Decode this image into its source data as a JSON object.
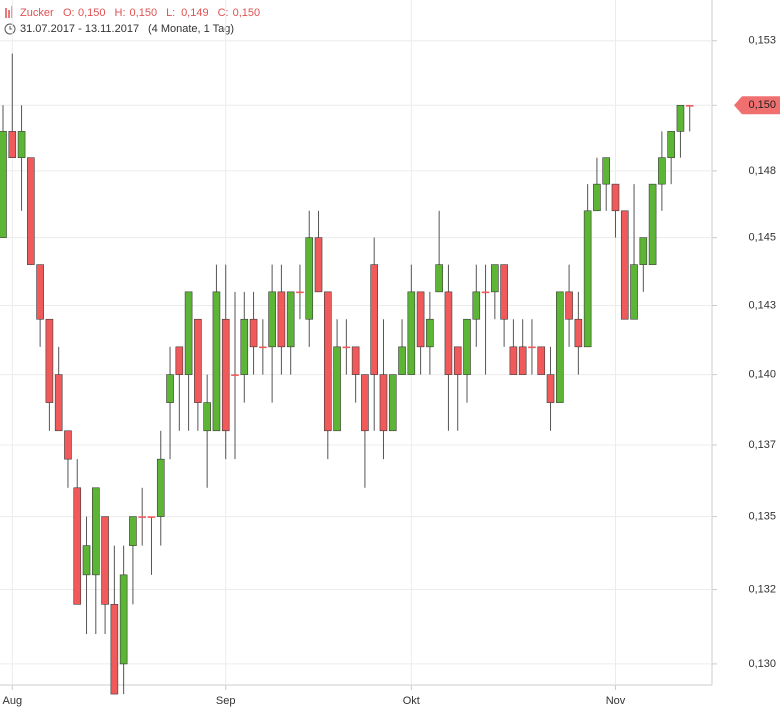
{
  "chart_data": {
    "type": "candlestick",
    "title": "Zucker",
    "ohlc_header": [
      {
        "label": "O:",
        "value": "0,150"
      },
      {
        "label": "H:",
        "value": "0,150"
      },
      {
        "label": "L:",
        "value": "0,149"
      },
      {
        "label": "C:",
        "value": "0,150"
      }
    ],
    "date_range": "31.07.2017 - 13.11.2017",
    "duration": "(4 Monate, 1 Tag)",
    "categories": [
      null,
      "Aug",
      null,
      null,
      null,
      null,
      null,
      null,
      null,
      null,
      null,
      null,
      null,
      null,
      null,
      null,
      null,
      null,
      null,
      null,
      null,
      null,
      null,
      null,
      "Sep",
      null,
      null,
      null,
      null,
      null,
      null,
      null,
      null,
      null,
      null,
      null,
      null,
      null,
      null,
      null,
      null,
      null,
      null,
      null,
      "Okt",
      null,
      null,
      null,
      null,
      null,
      null,
      null,
      null,
      null,
      null,
      null,
      null,
      null,
      null,
      null,
      null,
      null,
      null,
      null,
      null,
      null,
      "Nov",
      null,
      null,
      null,
      null,
      null,
      null,
      null,
      null
    ],
    "open": [
      0.145,
      0.149,
      0.148,
      0.148,
      0.144,
      0.142,
      0.14,
      0.138,
      0.136,
      0.133,
      0.133,
      0.135,
      0.132,
      0.13,
      0.134,
      0.135,
      0.135,
      0.135,
      0.139,
      0.141,
      0.14,
      0.142,
      0.138,
      0.138,
      0.142,
      0.14,
      0.14,
      0.142,
      0.141,
      0.141,
      0.143,
      0.141,
      0.143,
      0.142,
      0.145,
      0.143,
      0.138,
      0.141,
      0.141,
      0.14,
      0.144,
      0.14,
      0.138,
      0.14,
      0.14,
      0.143,
      0.141,
      0.143,
      0.143,
      0.141,
      0.14,
      0.142,
      0.143,
      0.143,
      0.144,
      0.141,
      0.141,
      0.141,
      0.141,
      0.14,
      0.139,
      0.143,
      0.142,
      0.141,
      0.146,
      0.147,
      0.147,
      0.146,
      0.142,
      0.144,
      0.144,
      0.147,
      0.148,
      0.149,
      0.15
    ],
    "high": [
      0.15,
      0.152,
      0.15,
      0.148,
      0.144,
      0.142,
      0.141,
      0.138,
      0.137,
      0.135,
      0.136,
      0.135,
      0.134,
      0.134,
      0.135,
      0.136,
      0.135,
      0.138,
      0.141,
      0.141,
      0.143,
      0.142,
      0.14,
      0.144,
      0.144,
      0.143,
      0.143,
      0.143,
      0.142,
      0.144,
      0.144,
      0.143,
      0.144,
      0.146,
      0.146,
      0.143,
      0.142,
      0.142,
      0.141,
      0.14,
      0.145,
      0.142,
      0.14,
      0.142,
      0.144,
      0.143,
      0.143,
      0.146,
      0.144,
      0.141,
      0.142,
      0.144,
      0.144,
      0.144,
      0.144,
      0.142,
      0.142,
      0.142,
      0.141,
      0.141,
      0.143,
      0.144,
      0.143,
      0.147,
      0.148,
      0.148,
      0.147,
      0.146,
      0.147,
      0.145,
      0.147,
      0.149,
      0.149,
      0.15,
      0.15
    ],
    "low": [
      0.145,
      0.148,
      0.146,
      0.144,
      0.141,
      0.138,
      0.138,
      0.136,
      0.132,
      0.131,
      0.131,
      0.131,
      0.129,
      0.129,
      0.132,
      0.134,
      0.133,
      0.134,
      0.137,
      0.138,
      0.138,
      0.138,
      0.136,
      0.138,
      0.137,
      0.137,
      0.139,
      0.14,
      0.14,
      0.139,
      0.14,
      0.14,
      0.142,
      0.141,
      0.143,
      0.137,
      0.138,
      0.14,
      0.139,
      0.136,
      0.138,
      0.137,
      0.138,
      0.14,
      0.14,
      0.14,
      0.14,
      0.143,
      0.138,
      0.138,
      0.139,
      0.141,
      0.14,
      0.142,
      0.141,
      0.14,
      0.14,
      0.14,
      0.14,
      0.138,
      0.139,
      0.141,
      0.14,
      0.141,
      0.146,
      0.146,
      0.145,
      0.142,
      0.142,
      0.143,
      0.144,
      0.146,
      0.147,
      0.148,
      0.149
    ],
    "close": [
      0.149,
      0.148,
      0.149,
      0.144,
      0.142,
      0.139,
      0.138,
      0.137,
      0.132,
      0.134,
      0.136,
      0.132,
      0.129,
      0.133,
      0.135,
      0.135,
      0.135,
      0.137,
      0.14,
      0.14,
      0.143,
      0.139,
      0.139,
      0.143,
      0.138,
      0.14,
      0.142,
      0.141,
      0.141,
      0.143,
      0.141,
      0.143,
      0.143,
      0.145,
      0.143,
      0.138,
      0.141,
      0.141,
      0.14,
      0.138,
      0.14,
      0.138,
      0.14,
      0.141,
      0.143,
      0.141,
      0.142,
      0.144,
      0.14,
      0.14,
      0.142,
      0.143,
      0.143,
      0.144,
      0.142,
      0.14,
      0.14,
      0.141,
      0.14,
      0.139,
      0.143,
      0.142,
      0.141,
      0.146,
      0.147,
      0.148,
      0.146,
      0.142,
      0.144,
      0.145,
      0.147,
      0.148,
      0.149,
      0.15,
      0.15
    ],
    "up_color": "#5cb534",
    "down_color": "#f05a5a",
    "log_scale": true,
    "grid": true,
    "ylim": [
      0.1293,
      0.1541
    ],
    "yticks": [
      {
        "value": 0.13,
        "label": "0,130"
      },
      {
        "value": 0.1325,
        "label": "0,132"
      },
      {
        "value": 0.135,
        "label": "0,135"
      },
      {
        "value": 0.1375,
        "label": "0,137"
      },
      {
        "value": 0.14,
        "label": "0,140"
      },
      {
        "value": 0.1425,
        "label": "0,143"
      },
      {
        "value": 0.145,
        "label": "0,145"
      },
      {
        "value": 0.1475,
        "label": "0,148"
      },
      {
        "value": 0.15,
        "label": "0,150"
      },
      {
        "value": 0.1525,
        "label": "0,153"
      }
    ],
    "last_price": {
      "value": 0.15,
      "label": "0,150"
    }
  }
}
